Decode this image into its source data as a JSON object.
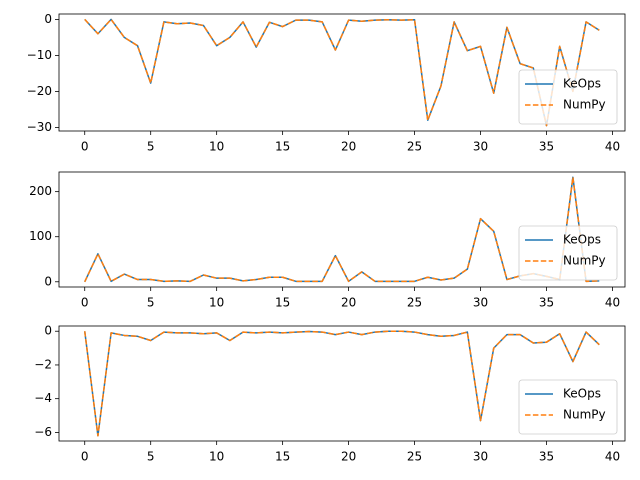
{
  "chart_data": [
    {
      "type": "line",
      "x": [
        0,
        1,
        2,
        3,
        4,
        5,
        6,
        7,
        8,
        9,
        10,
        11,
        12,
        13,
        14,
        15,
        16,
        17,
        18,
        19,
        20,
        21,
        22,
        23,
        24,
        25,
        26,
        27,
        28,
        29,
        30,
        31,
        32,
        33,
        34,
        35,
        36,
        37,
        38,
        39
      ],
      "series": [
        {
          "name": "KeOps",
          "color": "#1f77b4",
          "linestyle": "solid",
          "values": [
            0,
            -4,
            0,
            -5,
            -7.3,
            -17.7,
            -0.7,
            -1.2,
            -1,
            -1.7,
            -7.3,
            -5,
            -0.7,
            -7.7,
            -0.8,
            -2,
            -0.2,
            -0.2,
            -0.7,
            -8.5,
            -0.2,
            -0.5,
            -0.2,
            -0.1,
            -0.2,
            -0.1,
            -28,
            -18.5,
            -0.7,
            -8.7,
            -7.5,
            -20.5,
            -2.2,
            -12.3,
            -13.5,
            -29.5,
            -7.5,
            -20,
            -0.7,
            -3
          ]
        },
        {
          "name": "NumPy",
          "color": "#ff7f0e",
          "linestyle": "dashed",
          "values": [
            0,
            -4,
            0,
            -5,
            -7.3,
            -17.7,
            -0.7,
            -1.2,
            -1,
            -1.7,
            -7.3,
            -5,
            -0.7,
            -7.7,
            -0.8,
            -2,
            -0.2,
            -0.2,
            -0.7,
            -8.5,
            -0.2,
            -0.5,
            -0.2,
            -0.1,
            -0.2,
            -0.1,
            -28,
            -18.5,
            -0.7,
            -8.7,
            -7.5,
            -20.5,
            -2.2,
            -12.3,
            -13.5,
            -29.5,
            -7.5,
            -20,
            -0.7,
            -3
          ]
        }
      ],
      "xlim": [
        -1.95,
        40.95
      ],
      "xticks": [
        0,
        5,
        10,
        15,
        20,
        25,
        30,
        35,
        40
      ],
      "ylim": [
        -31,
        1.5
      ],
      "yticks": [
        {
          "value": -30,
          "label": "−30"
        },
        {
          "value": -20,
          "label": "−20"
        },
        {
          "value": -10,
          "label": "−10"
        },
        0
      ],
      "legend": "lower right"
    },
    {
      "type": "line",
      "x": [
        0,
        1,
        2,
        3,
        4,
        5,
        6,
        7,
        8,
        9,
        10,
        11,
        12,
        13,
        14,
        15,
        16,
        17,
        18,
        19,
        20,
        21,
        22,
        23,
        24,
        25,
        26,
        27,
        28,
        29,
        30,
        31,
        32,
        33,
        34,
        35,
        36,
        37,
        38,
        39
      ],
      "series": [
        {
          "name": "KeOps",
          "color": "#1f77b4",
          "linestyle": "solid",
          "values": [
            0,
            62,
            1,
            17,
            5,
            5,
            1,
            2,
            1,
            15,
            8,
            8,
            2,
            5,
            10,
            10,
            1,
            1,
            1,
            58,
            1,
            22,
            1,
            1,
            1,
            1,
            10,
            4,
            8,
            28,
            140,
            112,
            5,
            13,
            18,
            12,
            5,
            232,
            1,
            2
          ]
        },
        {
          "name": "NumPy",
          "color": "#ff7f0e",
          "linestyle": "dashed",
          "values": [
            0,
            62,
            1,
            17,
            5,
            5,
            1,
            2,
            1,
            15,
            8,
            8,
            2,
            5,
            10,
            10,
            1,
            1,
            1,
            58,
            1,
            22,
            1,
            1,
            1,
            1,
            10,
            4,
            8,
            28,
            140,
            112,
            5,
            13,
            18,
            12,
            5,
            232,
            1,
            2
          ]
        }
      ],
      "xlim": [
        -1.95,
        40.95
      ],
      "xticks": [
        0,
        5,
        10,
        15,
        20,
        25,
        30,
        35,
        40
      ],
      "ylim": [
        -11.6,
        243.6
      ],
      "yticks": [
        0,
        100,
        200
      ],
      "legend": "lower right"
    },
    {
      "type": "line",
      "x": [
        0,
        1,
        2,
        3,
        4,
        5,
        6,
        7,
        8,
        9,
        10,
        11,
        12,
        13,
        14,
        15,
        16,
        17,
        18,
        19,
        20,
        21,
        22,
        23,
        24,
        25,
        26,
        27,
        28,
        29,
        30,
        31,
        32,
        33,
        34,
        35,
        36,
        37,
        38,
        39
      ],
      "series": [
        {
          "name": "KeOps",
          "color": "#1f77b4",
          "linestyle": "solid",
          "values": [
            0,
            -6.2,
            -0.1,
            -0.25,
            -0.3,
            -0.55,
            -0.05,
            -0.1,
            -0.1,
            -0.15,
            -0.1,
            -0.55,
            -0.05,
            -0.1,
            -0.05,
            -0.1,
            -0.05,
            -0.02,
            -0.05,
            -0.2,
            -0.05,
            -0.2,
            -0.05,
            0,
            0,
            -0.05,
            -0.2,
            -0.3,
            -0.25,
            -0.05,
            -5.3,
            -1,
            -0.2,
            -0.2,
            -0.7,
            -0.65,
            -0.15,
            -1.8,
            -0.05,
            -0.8
          ]
        },
        {
          "name": "NumPy",
          "color": "#ff7f0e",
          "linestyle": "dashed",
          "values": [
            0,
            -6.2,
            -0.1,
            -0.25,
            -0.3,
            -0.55,
            -0.05,
            -0.1,
            -0.1,
            -0.15,
            -0.1,
            -0.55,
            -0.05,
            -0.1,
            -0.05,
            -0.1,
            -0.05,
            -0.02,
            -0.05,
            -0.2,
            -0.05,
            -0.2,
            -0.05,
            0,
            0,
            -0.05,
            -0.2,
            -0.3,
            -0.25,
            -0.05,
            -5.3,
            -1,
            -0.2,
            -0.2,
            -0.7,
            -0.65,
            -0.15,
            -1.8,
            -0.05,
            -0.8
          ]
        }
      ],
      "xlim": [
        -1.95,
        40.95
      ],
      "xticks": [
        0,
        5,
        10,
        15,
        20,
        25,
        30,
        35,
        40
      ],
      "ylim": [
        -6.51,
        0.31
      ],
      "yticks": [
        {
          "value": -6,
          "label": "−6"
        },
        {
          "value": -4,
          "label": "−4"
        },
        {
          "value": -2,
          "label": "−2"
        },
        0
      ],
      "legend": "lower right"
    }
  ]
}
